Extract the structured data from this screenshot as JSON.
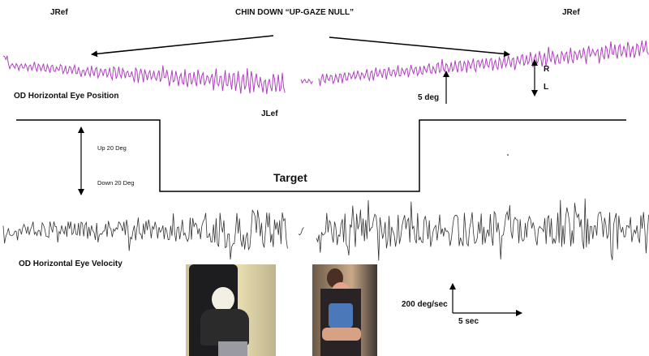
{
  "figure": {
    "title": "CHIN DOWN “UP-GAZE NULL”",
    "label_jref_left": "JRef",
    "label_jref_right": "JRef",
    "label_jlef": "JLef",
    "position_trace_label": "OD  Horizontal Eye Position",
    "velocity_trace_label": "OD Horizontal Eye Velocity",
    "target_label": "Target",
    "target_up": "Up 20 Deg",
    "target_down": "Down 20 Deg",
    "position_scale": "5 deg",
    "direction_right": "R",
    "direction_left": "L",
    "velocity_scale": "200 deg/sec",
    "time_scale": "5 sec"
  },
  "colors": {
    "position_trace": "#b040c0",
    "velocity_trace": "#333333",
    "annotation": "#000000"
  }
}
